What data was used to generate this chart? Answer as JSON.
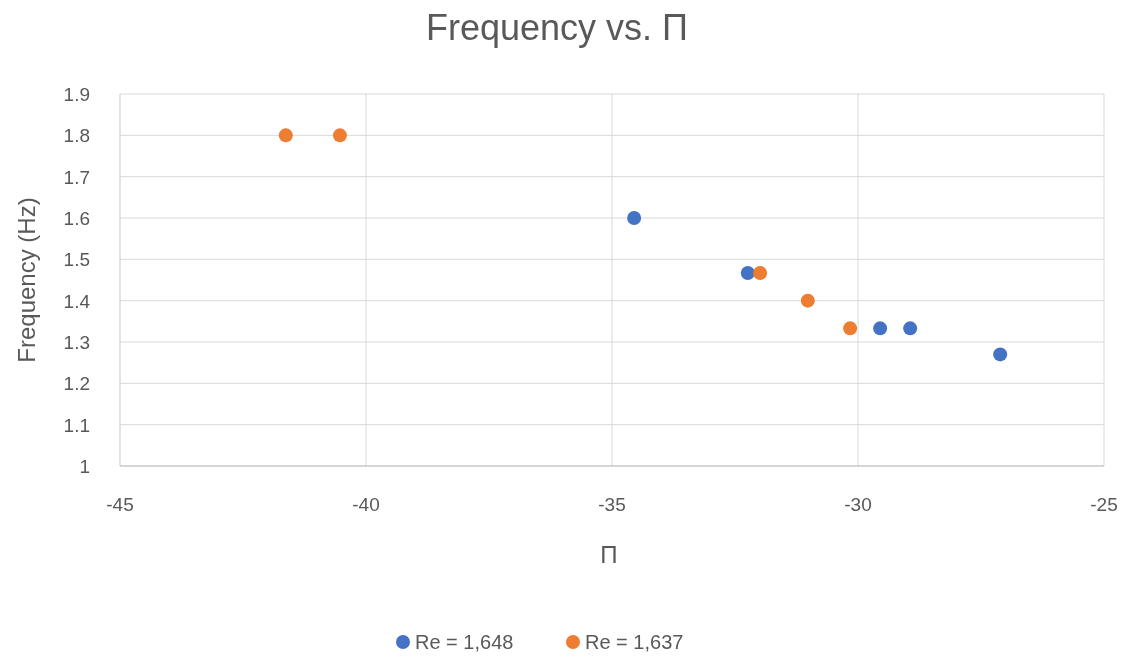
{
  "chart_data": {
    "type": "scatter",
    "title": "Frequency vs. Π",
    "xlabel": "Π",
    "ylabel": "Frequency (Hz)",
    "xlim": [
      -45,
      -25
    ],
    "xticks": [
      -45,
      -40,
      -35,
      -30,
      -25
    ],
    "ylim": [
      1,
      1.9
    ],
    "yticks": [
      1,
      1.1,
      1.2,
      1.3,
      1.4,
      1.5,
      1.6,
      1.7,
      1.8,
      1.9
    ],
    "grid": true,
    "legend": "bottom",
    "marker": "circle",
    "series": [
      {
        "name": "Re = 1,648",
        "color": "#4472c4",
        "x": [
          -34.55,
          -32.24,
          -29.55,
          -28.94,
          -27.11
        ],
        "values": [
          1.6,
          1.467,
          1.333,
          1.333,
          1.27
        ]
      },
      {
        "name": "Re = 1,637",
        "color": "#ed7d31",
        "x": [
          -41.63,
          -40.53,
          -31.99,
          -31.02,
          -30.16
        ],
        "values": [
          1.8,
          1.8,
          1.467,
          1.4,
          1.333
        ]
      }
    ]
  }
}
